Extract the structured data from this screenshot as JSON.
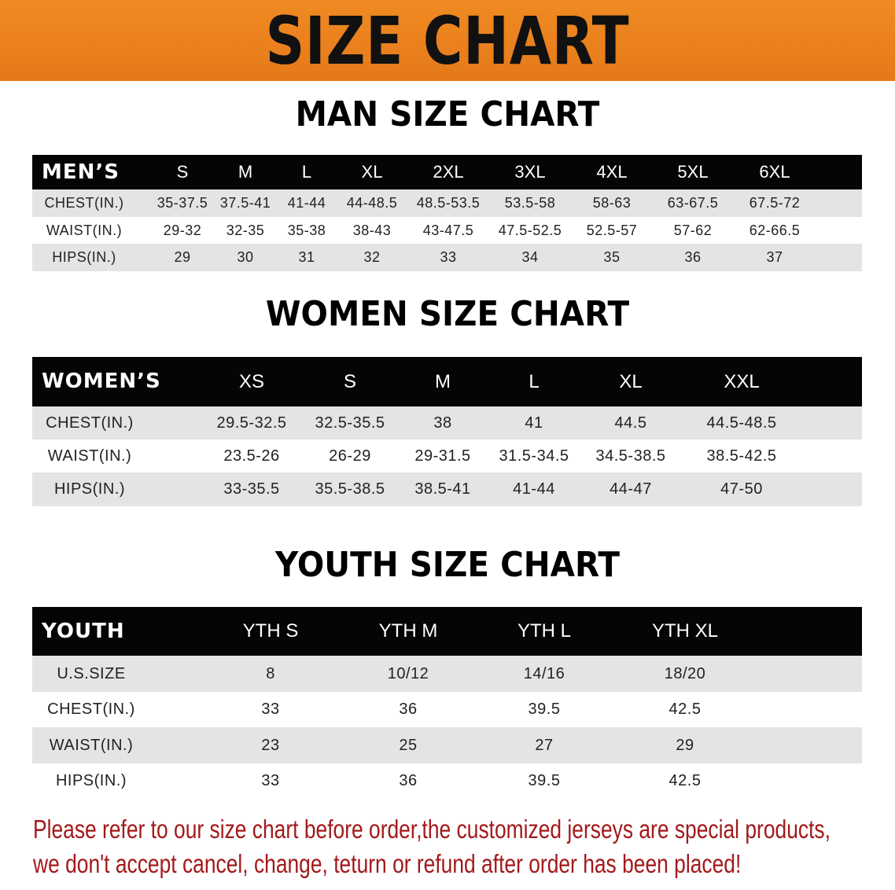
{
  "banner": {
    "title": "SIZE CHART",
    "color": "#ea7f1e"
  },
  "tables": [
    {
      "title": "MAN SIZE CHART",
      "header": "MEN’S",
      "columns": [
        "S",
        "M",
        "L",
        "XL",
        "2XL",
        "3XL",
        "4XL",
        "5XL",
        "6XL"
      ],
      "rows": [
        {
          "label": "CHEST(IN.)",
          "values": [
            "35-37.5",
            "37.5-41",
            "41-44",
            "44-48.5",
            "48.5-53.5",
            "53.5-58",
            "58-63",
            "63-67.5",
            "67.5-72"
          ]
        },
        {
          "label": "WAIST(IN.)",
          "values": [
            "29-32",
            "32-35",
            "35-38",
            "38-43",
            "43-47.5",
            "47.5-52.5",
            "52.5-57",
            "57-62",
            "62-66.5"
          ]
        },
        {
          "label": "HIPS(IN.)",
          "values": [
            "29",
            "30",
            "31",
            "32",
            "33",
            "34",
            "35",
            "36",
            "37"
          ]
        }
      ]
    },
    {
      "title": "WOMEN SIZE CHART",
      "header": "WOMEN’S",
      "columns": [
        "XS",
        "S",
        "M",
        "L",
        "XL",
        "XXL"
      ],
      "rows": [
        {
          "label": "CHEST(IN.)",
          "values": [
            "29.5-32.5",
            "32.5-35.5",
            "38",
            "41",
            "44.5",
            "44.5-48.5"
          ]
        },
        {
          "label": "WAIST(IN.)",
          "values": [
            "23.5-26",
            "26-29",
            "29-31.5",
            "31.5-34.5",
            "34.5-38.5",
            "38.5-42.5"
          ]
        },
        {
          "label": "HIPS(IN.)",
          "values": [
            "33-35.5",
            "35.5-38.5",
            "38.5-41",
            "41-44",
            "44-47",
            "47-50"
          ]
        }
      ]
    },
    {
      "title": "YOUTH SIZE CHART",
      "header": "YOUTH",
      "columns": [
        "YTH S",
        "YTH M",
        "YTH L",
        "YTH XL"
      ],
      "rows": [
        {
          "label": "U.S.SIZE",
          "values": [
            "8",
            "10/12",
            "14/16",
            "18/20"
          ]
        },
        {
          "label": "CHEST(IN.)",
          "values": [
            "33",
            "36",
            "39.5",
            "42.5"
          ]
        },
        {
          "label": "WAIST(IN.)",
          "values": [
            "23",
            "25",
            "27",
            "29"
          ]
        },
        {
          "label": "HIPS(IN.)",
          "values": [
            "33",
            "36",
            "39.5",
            "42.5"
          ]
        }
      ]
    }
  ],
  "notice": {
    "line1": "Please refer to our size chart before order,the customized jerseys are special products,",
    "line2": "we don't accept cancel, change, teturn or refund after order has been placed!",
    "color": "#a3191b"
  }
}
